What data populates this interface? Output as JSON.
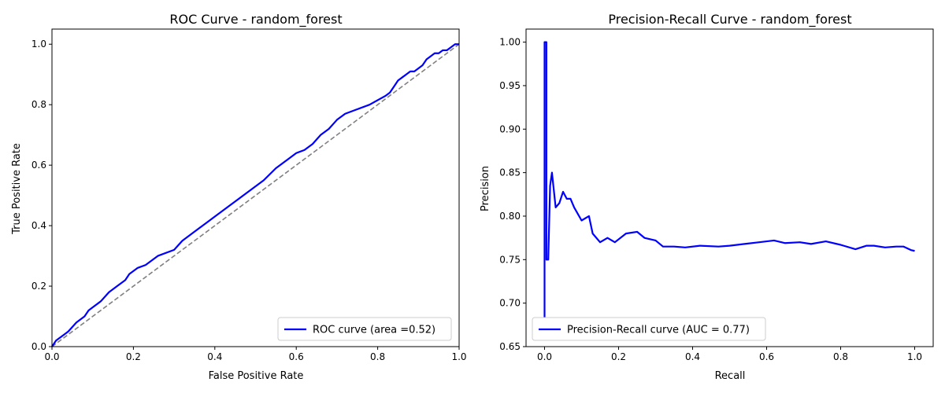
{
  "chart_data": [
    {
      "type": "line",
      "title": "ROC Curve - random_forest",
      "xlabel": "False Positive Rate",
      "ylabel": "True Positive Rate",
      "xlim": [
        0,
        1
      ],
      "ylim": [
        0,
        1.05
      ],
      "xticks": [
        0.0,
        0.2,
        0.4,
        0.6,
        0.8,
        1.0
      ],
      "yticks": [
        0.0,
        0.2,
        0.4,
        0.6,
        0.8,
        1.0
      ],
      "xtick_labels": [
        "0.0",
        "0.2",
        "0.4",
        "0.6",
        "0.8",
        "1.0"
      ],
      "ytick_labels": [
        "0.0",
        "0.2",
        "0.4",
        "0.6",
        "0.8",
        "1.0"
      ],
      "grid": false,
      "legend_position": "lower-right",
      "series": [
        {
          "name": "ROC curve (area =0.52)",
          "color": "#0000ff",
          "style": "solid",
          "x": [
            0.0,
            0.01,
            0.03,
            0.04,
            0.06,
            0.08,
            0.09,
            0.1,
            0.12,
            0.14,
            0.16,
            0.18,
            0.19,
            0.21,
            0.23,
            0.26,
            0.3,
            0.32,
            0.35,
            0.38,
            0.4,
            0.44,
            0.48,
            0.52,
            0.55,
            0.58,
            0.6,
            0.62,
            0.64,
            0.66,
            0.68,
            0.7,
            0.72,
            0.74,
            0.78,
            0.82,
            0.83,
            0.84,
            0.85,
            0.86,
            0.87,
            0.88,
            0.89,
            0.9,
            0.91,
            0.92,
            0.93,
            0.94,
            0.95,
            0.96,
            0.97,
            0.98,
            0.99,
            1.0
          ],
          "y": [
            0.0,
            0.02,
            0.04,
            0.05,
            0.08,
            0.1,
            0.12,
            0.13,
            0.15,
            0.18,
            0.2,
            0.22,
            0.24,
            0.26,
            0.27,
            0.3,
            0.32,
            0.35,
            0.38,
            0.41,
            0.43,
            0.47,
            0.51,
            0.55,
            0.59,
            0.62,
            0.64,
            0.65,
            0.67,
            0.7,
            0.72,
            0.75,
            0.77,
            0.78,
            0.8,
            0.83,
            0.84,
            0.86,
            0.88,
            0.89,
            0.9,
            0.91,
            0.91,
            0.92,
            0.93,
            0.95,
            0.96,
            0.97,
            0.97,
            0.98,
            0.98,
            0.99,
            1.0,
            1.0
          ]
        },
        {
          "name": "",
          "color": "#808080",
          "style": "dashed",
          "x": [
            0,
            1
          ],
          "y": [
            0,
            1
          ]
        }
      ]
    },
    {
      "type": "line",
      "title": "Precision-Recall Curve - random_forest",
      "xlabel": "Recall",
      "ylabel": "Precision",
      "xlim": [
        -0.05,
        1.05
      ],
      "ylim": [
        0.65,
        1.015
      ],
      "xticks": [
        0.0,
        0.2,
        0.4,
        0.6,
        0.8,
        1.0
      ],
      "yticks": [
        0.65,
        0.7,
        0.75,
        0.8,
        0.85,
        0.9,
        0.95,
        1.0
      ],
      "xtick_labels": [
        "0.0",
        "0.2",
        "0.4",
        "0.6",
        "0.8",
        "1.0"
      ],
      "ytick_labels": [
        "0.65",
        "0.70",
        "0.75",
        "0.80",
        "0.85",
        "0.90",
        "0.95",
        "1.00"
      ],
      "grid": false,
      "legend_position": "lower-left",
      "series": [
        {
          "name": "Precision-Recall curve (AUC = 0.77)",
          "color": "#0000ff",
          "style": "solid",
          "x": [
            0.0,
            0.0,
            0.005,
            0.005,
            0.01,
            0.015,
            0.02,
            0.03,
            0.04,
            0.05,
            0.06,
            0.07,
            0.08,
            0.1,
            0.12,
            0.13,
            0.15,
            0.17,
            0.19,
            0.22,
            0.25,
            0.27,
            0.3,
            0.32,
            0.35,
            0.38,
            0.42,
            0.47,
            0.5,
            0.54,
            0.58,
            0.62,
            0.65,
            0.69,
            0.72,
            0.76,
            0.8,
            0.84,
            0.87,
            0.89,
            0.92,
            0.95,
            0.97,
            0.99,
            1.0
          ],
          "y": [
            0.67,
            1.0,
            1.0,
            0.75,
            0.75,
            0.835,
            0.85,
            0.81,
            0.815,
            0.828,
            0.82,
            0.82,
            0.81,
            0.795,
            0.8,
            0.78,
            0.77,
            0.775,
            0.77,
            0.78,
            0.782,
            0.775,
            0.772,
            0.765,
            0.765,
            0.764,
            0.766,
            0.765,
            0.766,
            0.768,
            0.77,
            0.772,
            0.769,
            0.77,
            0.768,
            0.771,
            0.767,
            0.762,
            0.766,
            0.766,
            0.764,
            0.765,
            0.765,
            0.761,
            0.76
          ]
        }
      ]
    }
  ]
}
